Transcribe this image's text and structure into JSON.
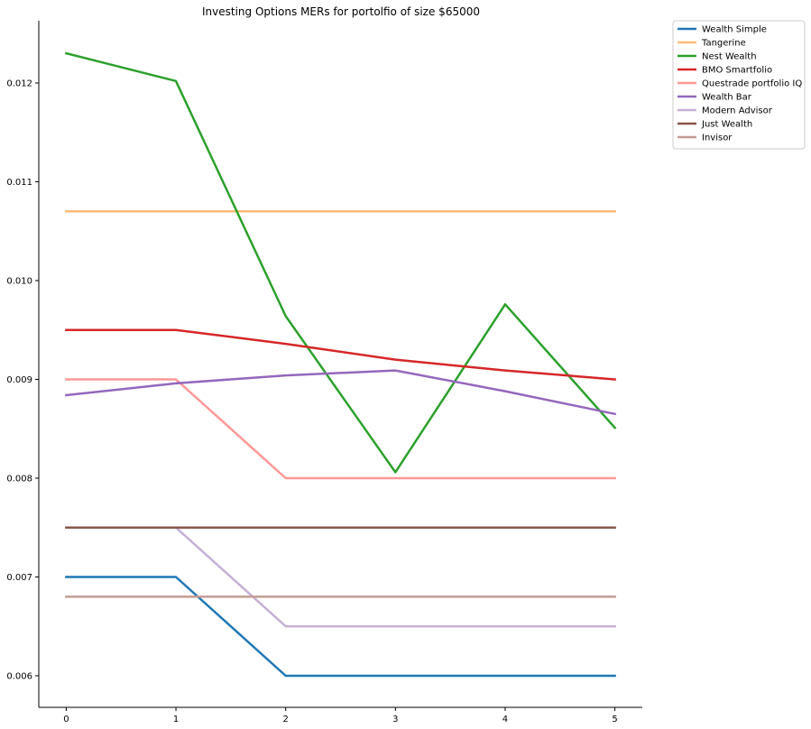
{
  "chart_data": {
    "type": "line",
    "title": "Investing Options MERs for portolfio of size $65000",
    "xlabel": "",
    "ylabel": "",
    "x": [
      0,
      1,
      2,
      3,
      4,
      5
    ],
    "xticks": [
      "0",
      "1",
      "2",
      "3",
      "4",
      "5"
    ],
    "yticks": [
      "0.006",
      "0.007",
      "0.008",
      "0.009",
      "0.010",
      "0.011",
      "0.012"
    ],
    "xlim": [
      -0.25,
      5.25
    ],
    "ylim": [
      0.00568,
      0.01263
    ],
    "grid": false,
    "legend_position": "outside-top-right",
    "series": [
      {
        "name": "Wealth Simple",
        "color": "#1f77b4",
        "values": [
          0.007,
          0.007,
          0.006,
          0.006,
          0.006,
          0.006
        ]
      },
      {
        "name": "Tangerine",
        "color": "#ffbb78",
        "values": [
          0.0107,
          0.0107,
          0.0107,
          0.0107,
          0.0107,
          0.0107
        ]
      },
      {
        "name": "Nest Wealth",
        "color": "#2ca02c",
        "values": [
          0.0123,
          0.01202,
          0.00964,
          0.00806,
          0.00976,
          0.00851
        ]
      },
      {
        "name": "BMO Smartfolio",
        "color": "#d62728",
        "values": [
          0.0095,
          0.0095,
          0.00936,
          0.0092,
          0.00909,
          0.009
        ]
      },
      {
        "name": "Questrade portfolio IQ",
        "color": "#ff9896",
        "values": [
          0.009,
          0.009,
          0.008,
          0.008,
          0.008,
          0.008
        ]
      },
      {
        "name": "Wealth Bar",
        "color": "#9467bd",
        "values": [
          0.00884,
          0.00896,
          0.00904,
          0.00909,
          0.00888,
          0.00865
        ]
      },
      {
        "name": "Modern Advisor",
        "color": "#c5b0d5",
        "values": [
          0.0075,
          0.0075,
          0.0065,
          0.0065,
          0.0065,
          0.0065
        ]
      },
      {
        "name": "Just Wealth",
        "color": "#8c564b",
        "values": [
          0.0075,
          0.0075,
          0.0075,
          0.0075,
          0.0075,
          0.0075
        ]
      },
      {
        "name": "Invisor",
        "color": "#c49c94",
        "values": [
          0.0068,
          0.0068,
          0.0068,
          0.0068,
          0.0068,
          0.0068
        ]
      }
    ]
  }
}
